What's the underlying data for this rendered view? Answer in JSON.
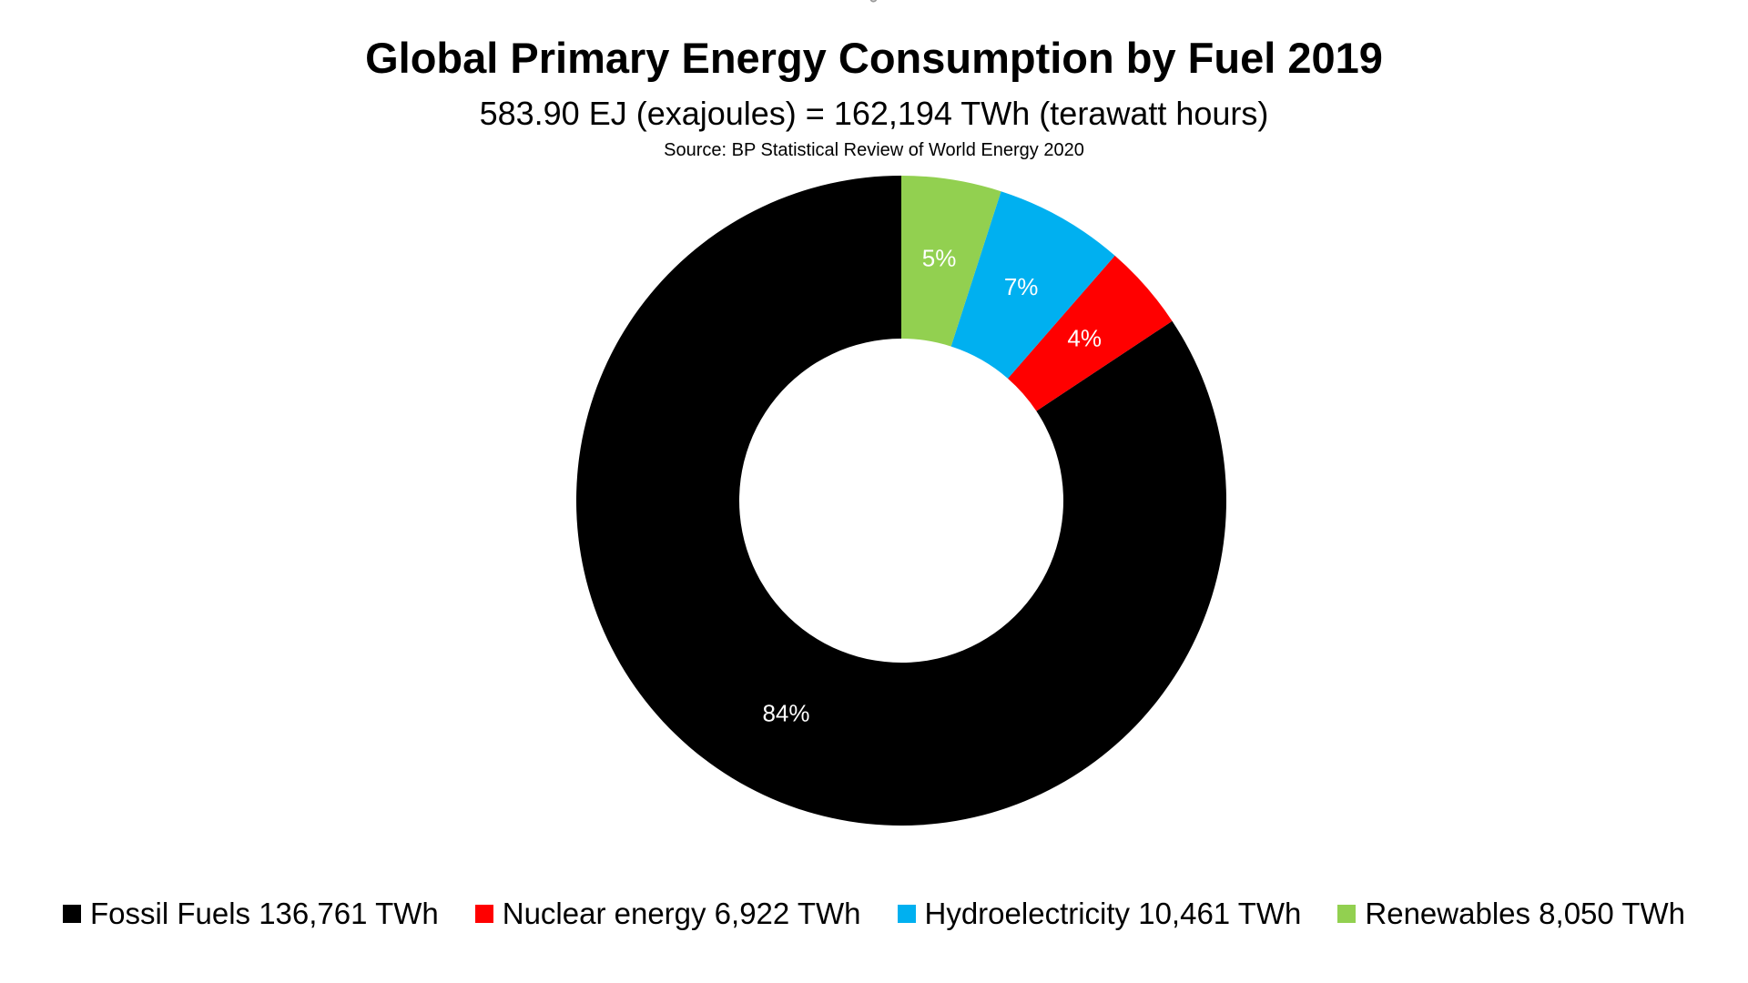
{
  "header": {
    "mark": "˘",
    "title": "Global Primary Energy Consumption by Fuel 2019",
    "subtitle": "583.90 EJ (exajoules) = 162,194 TWh (terawatt hours)",
    "source": "Source: BP Statistical Review of World Energy 2020"
  },
  "chart_data": {
    "type": "pie",
    "variant": "doughnut",
    "title": "Global Primary Energy Consumption by Fuel 2019",
    "subtitle": "583.90 EJ (exajoules) = 162,194 TWh (terawatt hours)",
    "source": "Source: BP Statistical Review of World Energy 2020",
    "legend_position": "bottom",
    "series": [
      {
        "name": "Fossil Fuels",
        "legend_label": "Fossil Fuels 136,761 TWh",
        "value": 136761,
        "percent_label": "84%",
        "color": "#000000",
        "label_color": "#ffffff"
      },
      {
        "name": "Nuclear energy",
        "legend_label": "Nuclear energy 6,922 TWh",
        "value": 6922,
        "percent_label": "4%",
        "color": "#ff0000",
        "label_color": "#ffffff"
      },
      {
        "name": "Hydroelectricity",
        "legend_label": "Hydroelectricity 10,461 TWh",
        "value": 10461,
        "percent_label": "7%",
        "color": "#00b0f0",
        "label_color": "#ffffff"
      },
      {
        "name": "Renewables",
        "legend_label": "Renewables 8,050 TWh",
        "value": 8050,
        "percent_label": "5%",
        "color": "#92d050",
        "label_color": "#ffffff"
      }
    ]
  }
}
